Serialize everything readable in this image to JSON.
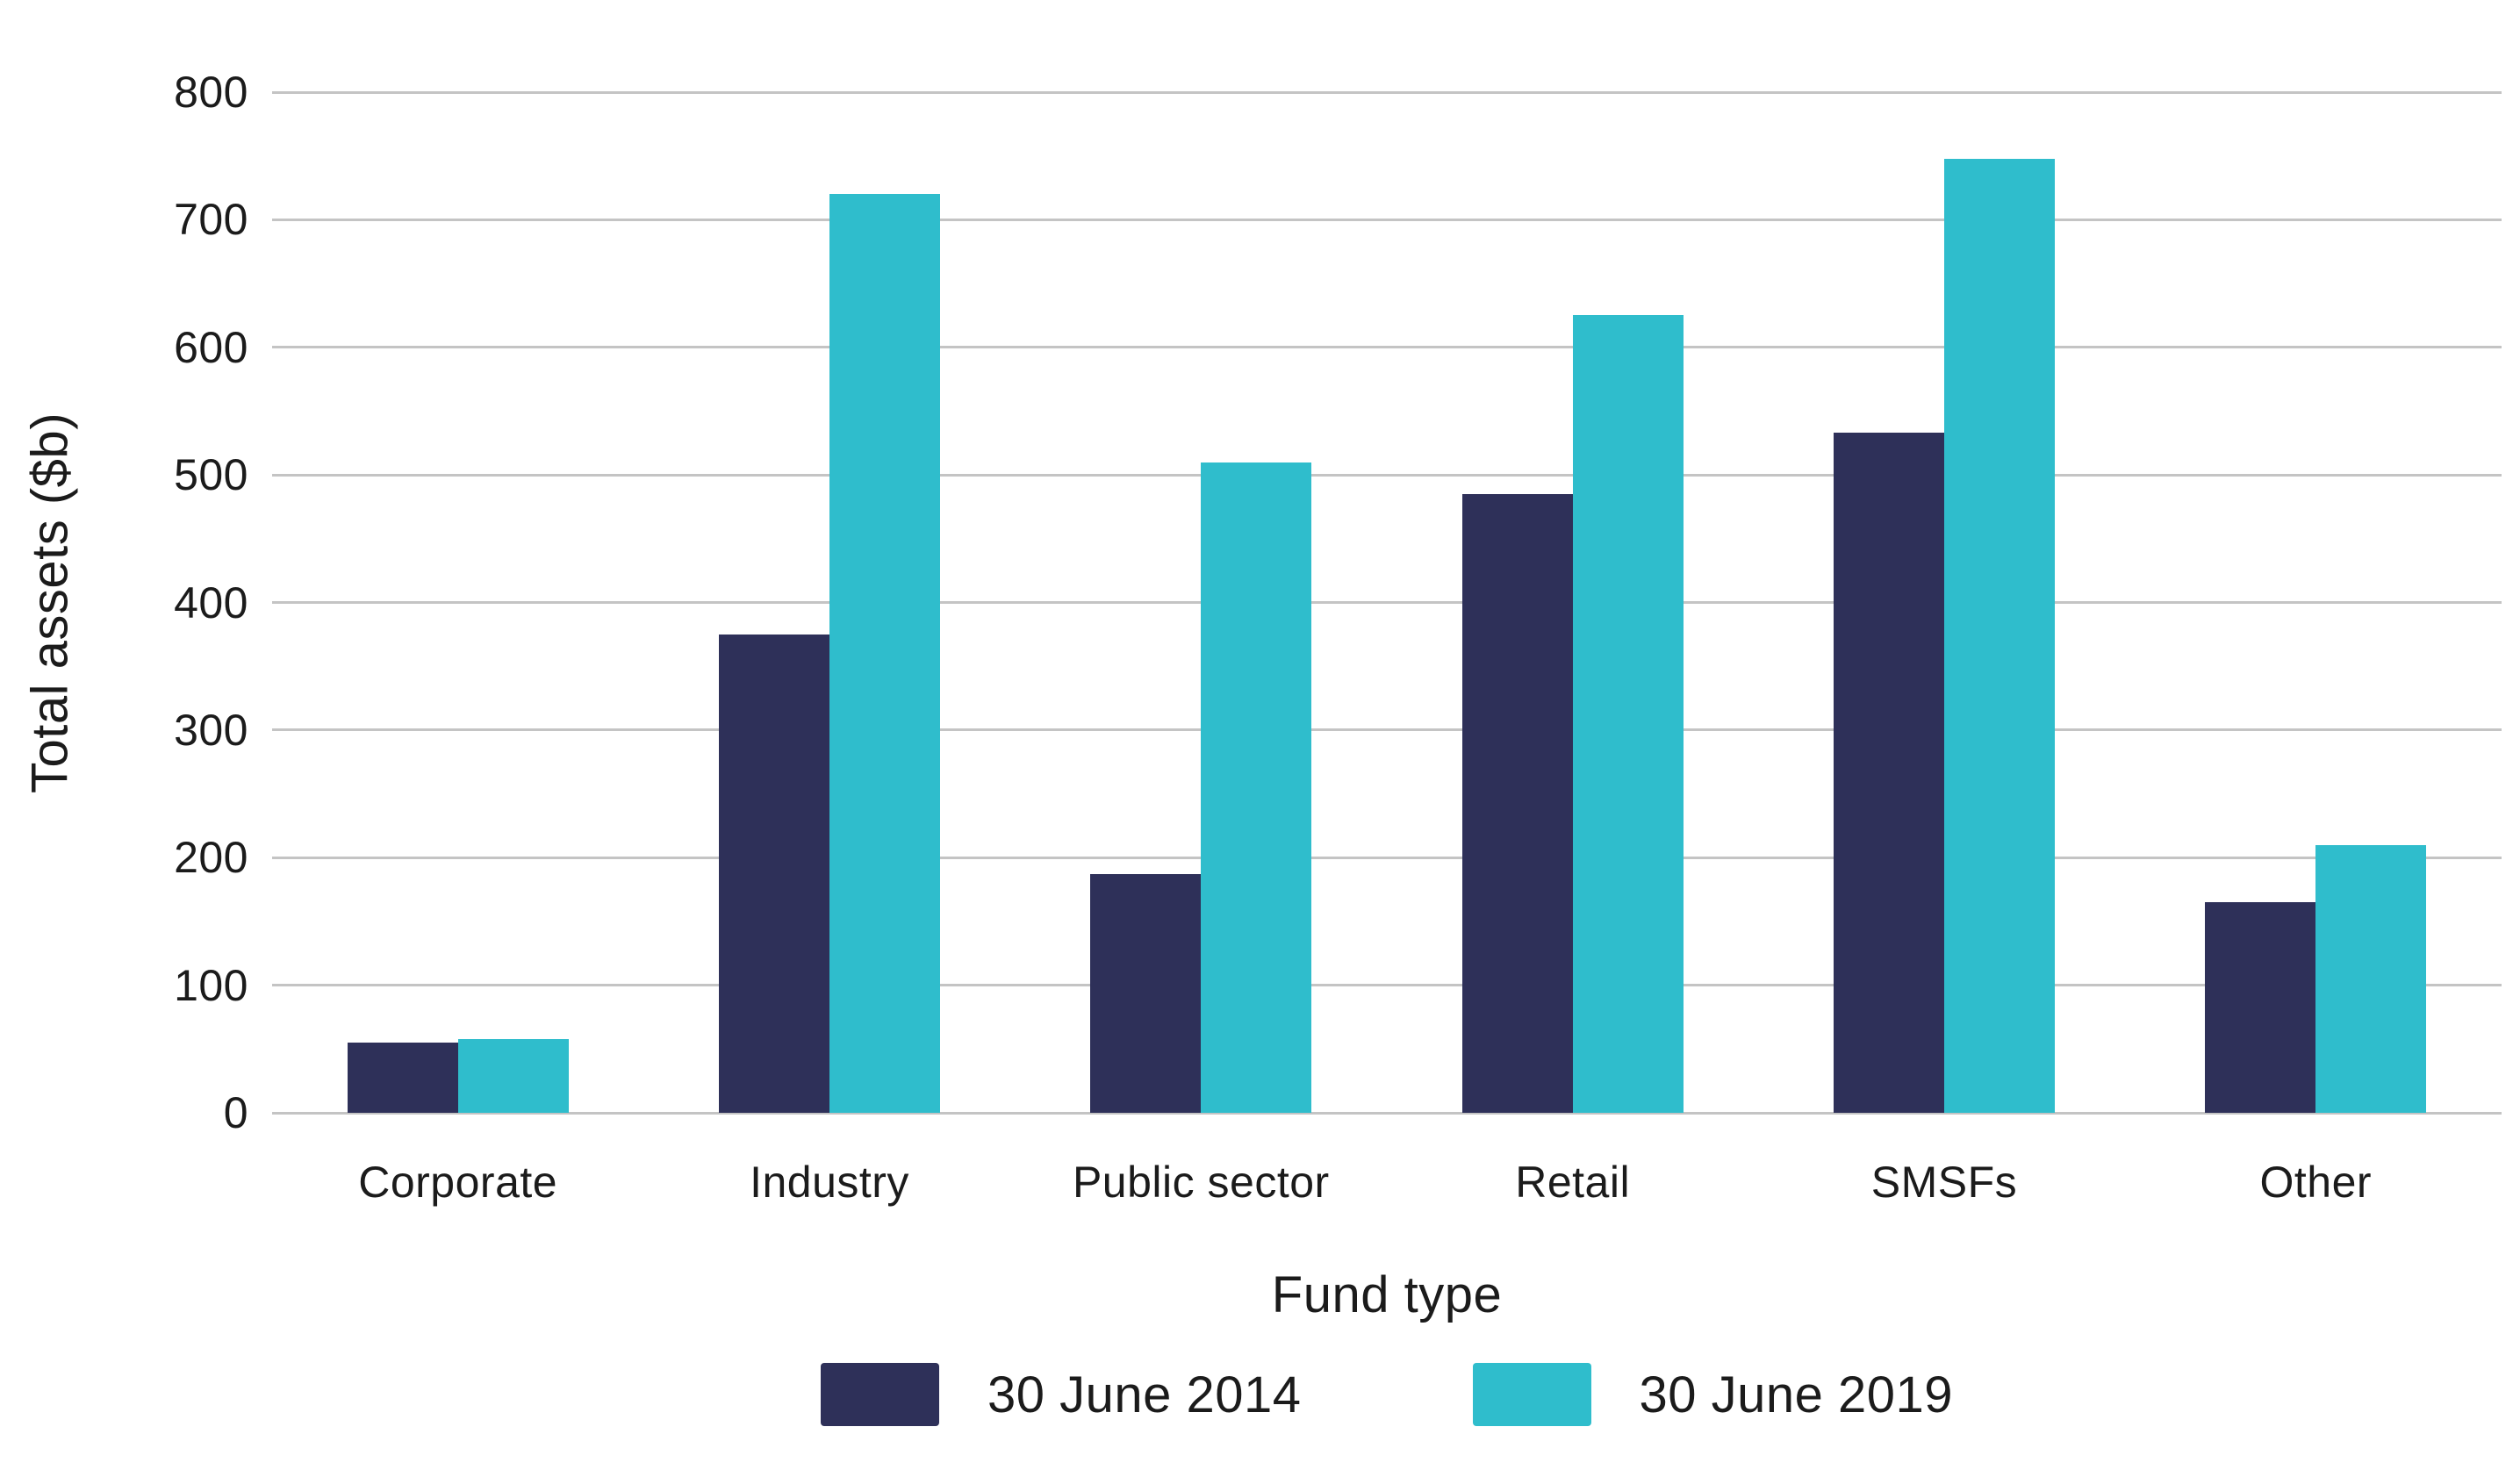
{
  "chart_data": {
    "type": "bar",
    "title": "",
    "categories": [
      "Corporate",
      "Industry",
      "Public sector",
      "Retail",
      "SMSFs",
      "Other"
    ],
    "series": [
      {
        "name": "30 June 2014",
        "color": "#2E3059",
        "values": [
          55,
          375,
          187,
          485,
          533,
          165
        ]
      },
      {
        "name": "30 June 2019",
        "color": "#2FBDCC",
        "values": [
          58,
          720,
          510,
          625,
          748,
          210
        ]
      }
    ],
    "xlabel": "Fund type",
    "ylabel": "Total assets ($b)",
    "ylim": [
      0,
      800
    ],
    "yticks": [
      800,
      700,
      600,
      500,
      400,
      300,
      200,
      100,
      0
    ],
    "grid": true,
    "legend_position": "bottom"
  },
  "styles": {
    "gridline_color": "#c4c4c4",
    "text_color": "#1b1b1b",
    "background_color": "#ffffff"
  }
}
